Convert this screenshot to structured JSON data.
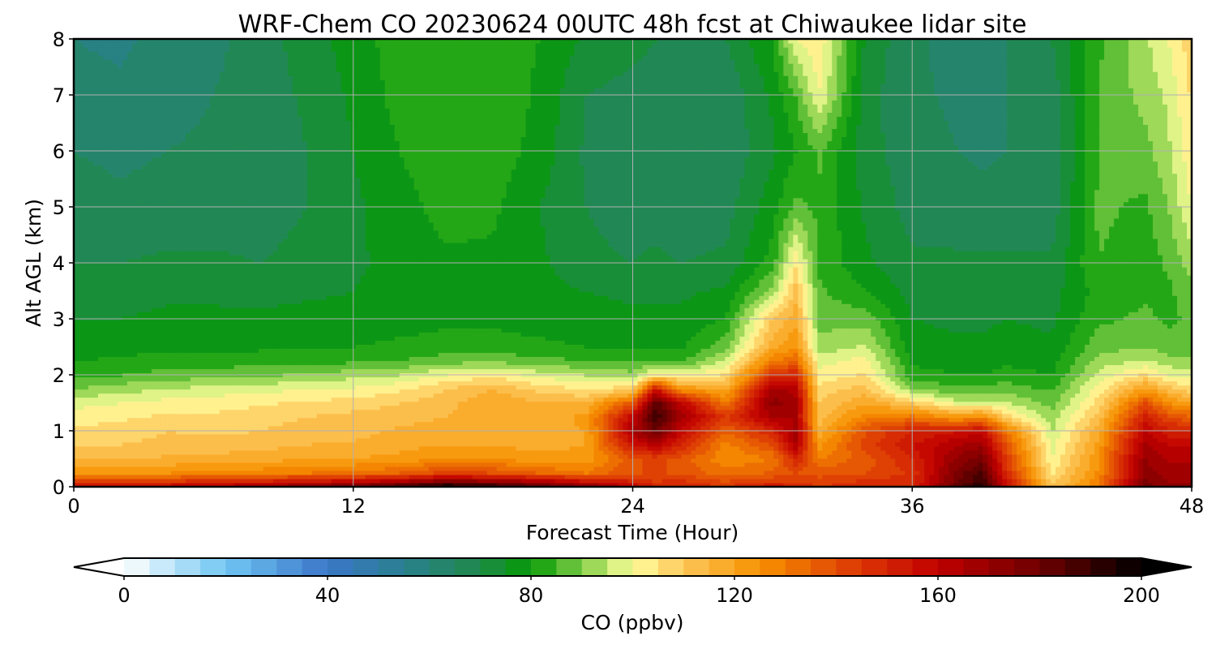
{
  "chart_data": {
    "type": "heatmap",
    "title": "WRF-Chem CO  20230624 00UTC 48h fcst at Chiwaukee lidar site",
    "xlabel": "Forecast Time (Hour)",
    "ylabel": "Alt AGL (km)",
    "xlim": [
      0,
      48
    ],
    "ylim": [
      0,
      8
    ],
    "xticks": [
      0,
      12,
      24,
      36,
      48
    ],
    "yticks": [
      0,
      1,
      2,
      3,
      4,
      5,
      6,
      7,
      8
    ],
    "grid": true,
    "x_hours": [
      0,
      2,
      4,
      6,
      8,
      10,
      12,
      14,
      16,
      18,
      20,
      22,
      24,
      25,
      26,
      28,
      30,
      31,
      32,
      34,
      36,
      38,
      39,
      40,
      42,
      44,
      46,
      47,
      48
    ],
    "y_km": [
      0,
      0.1,
      0.25,
      0.5,
      0.75,
      1.0,
      1.25,
      1.5,
      1.75,
      2.0,
      2.25,
      2.5,
      3.0,
      3.5,
      4.0,
      5.0,
      6.0,
      7.0,
      8.0
    ],
    "z_ppbv": [
      [
        160,
        145,
        125,
        115,
        110,
        106,
        103,
        98,
        90,
        83,
        80,
        77,
        75,
        73,
        70,
        67,
        65,
        62,
        60
      ],
      [
        158,
        143,
        124,
        114,
        110,
        107,
        104,
        100,
        93,
        85,
        81,
        78,
        75,
        73,
        70,
        66,
        64,
        61,
        59
      ],
      [
        160,
        145,
        125,
        116,
        112,
        110,
        106,
        102,
        95,
        87,
        82,
        79,
        76,
        74,
        71,
        67,
        65,
        63,
        62
      ],
      [
        165,
        148,
        128,
        117,
        112,
        109,
        106,
        103,
        97,
        88,
        82,
        79,
        76,
        74,
        71,
        67,
        66,
        65,
        64
      ],
      [
        168,
        150,
        128,
        118,
        113,
        110,
        108,
        104,
        98,
        89,
        83,
        79,
        76,
        73,
        70,
        67,
        66,
        67,
        67
      ],
      [
        175,
        155,
        130,
        120,
        115,
        112,
        110,
        106,
        100,
        91,
        83,
        80,
        77,
        74,
        72,
        70,
        70,
        71,
        73
      ],
      [
        180,
        158,
        132,
        120,
        116,
        113,
        112,
        107,
        101,
        93,
        84,
        80,
        77,
        75,
        74,
        74,
        75,
        76,
        77
      ],
      [
        190,
        165,
        135,
        122,
        118,
        116,
        113,
        110,
        104,
        95,
        85,
        81,
        78,
        77,
        77,
        78,
        80,
        82,
        83
      ],
      [
        200,
        175,
        142,
        126,
        120,
        118,
        115,
        113,
        110,
        100,
        88,
        82,
        79,
        78,
        79,
        82,
        84,
        85,
        84
      ],
      [
        195,
        170,
        140,
        125,
        120,
        118,
        118,
        120,
        115,
        103,
        89,
        82,
        79,
        78,
        79,
        81,
        83,
        84,
        82
      ],
      [
        185,
        165,
        135,
        122,
        118,
        117,
        116,
        115,
        108,
        98,
        87,
        81,
        78,
        77,
        76,
        75,
        78,
        79,
        80
      ],
      [
        175,
        155,
        130,
        122,
        120,
        120,
        122,
        115,
        105,
        95,
        85,
        80,
        77,
        75,
        71,
        70,
        69,
        70,
        74
      ],
      [
        160,
        150,
        140,
        138,
        155,
        165,
        160,
        138,
        108,
        92,
        84,
        79,
        76,
        74,
        70,
        68,
        67,
        68,
        72
      ],
      [
        150,
        145,
        140,
        142,
        162,
        180,
        190,
        185,
        155,
        105,
        86,
        79,
        76,
        74,
        71,
        68,
        66,
        67,
        70
      ],
      [
        150,
        146,
        140,
        138,
        150,
        160,
        168,
        162,
        125,
        100,
        84,
        79,
        76,
        74,
        70,
        67,
        65,
        66,
        70
      ],
      [
        145,
        140,
        132,
        126,
        128,
        135,
        145,
        130,
        118,
        106,
        96,
        88,
        80,
        76,
        71,
        68,
        66,
        66,
        70
      ],
      [
        155,
        145,
        136,
        130,
        140,
        150,
        165,
        172,
        168,
        148,
        130,
        118,
        110,
        92,
        82,
        78,
        74,
        76,
        80
      ],
      [
        150,
        145,
        140,
        150,
        165,
        168,
        165,
        168,
        162,
        150,
        135,
        125,
        118,
        112,
        104,
        86,
        80,
        85,
        100
      ],
      [
        145,
        142,
        138,
        130,
        123,
        117,
        112,
        110,
        107,
        102,
        98,
        92,
        88,
        86,
        84,
        84,
        86,
        100,
        104
      ],
      [
        150,
        146,
        140,
        137,
        142,
        140,
        128,
        120,
        112,
        106,
        102,
        96,
        88,
        80,
        76,
        74,
        72,
        72,
        74
      ],
      [
        150,
        148,
        146,
        150,
        155,
        150,
        132,
        110,
        90,
        82,
        79,
        77,
        75,
        73,
        71,
        68,
        67,
        66,
        66
      ],
      [
        185,
        180,
        178,
        172,
        165,
        155,
        122,
        97,
        86,
        80,
        78,
        76,
        74,
        73,
        71,
        67,
        65,
        64,
        63
      ],
      [
        195,
        190,
        186,
        178,
        168,
        158,
        128,
        98,
        86,
        80,
        78,
        76,
        74,
        73,
        71,
        67,
        64,
        64,
        63
      ],
      [
        160,
        155,
        150,
        145,
        140,
        132,
        108,
        96,
        88,
        82,
        79,
        77,
        75,
        73,
        71,
        67,
        65,
        65,
        65
      ],
      [
        112,
        108,
        104,
        100,
        98,
        95,
        92,
        88,
        84,
        80,
        78,
        76,
        74,
        73,
        71,
        67,
        66,
        67,
        70
      ],
      [
        130,
        128,
        126,
        124,
        122,
        118,
        112,
        107,
        102,
        97,
        92,
        88,
        84,
        82,
        85,
        86,
        85,
        85,
        84
      ],
      [
        178,
        176,
        172,
        170,
        166,
        160,
        152,
        140,
        122,
        106,
        96,
        90,
        86,
        84,
        82,
        84,
        88,
        92,
        94
      ],
      [
        172,
        170,
        168,
        164,
        160,
        152,
        140,
        126,
        112,
        100,
        92,
        87,
        84,
        84,
        86,
        90,
        94,
        96,
        100
      ],
      [
        172,
        170,
        168,
        164,
        160,
        150,
        136,
        120,
        106,
        97,
        91,
        87,
        86,
        88,
        93,
        100,
        104,
        106,
        108
      ]
    ],
    "colorbar": {
      "label": "CO  (ppbv)",
      "min": 0,
      "max": 200,
      "step": 5,
      "ticks": [
        0,
        40,
        80,
        120,
        160,
        200
      ],
      "extend": "both",
      "colormap_stops": [
        {
          "value": 0,
          "color": "#ffffff"
        },
        {
          "value": 20,
          "color": "#6fc6f2"
        },
        {
          "value": 40,
          "color": "#3b76c9"
        },
        {
          "value": 55,
          "color": "#2a7f8e"
        },
        {
          "value": 70,
          "color": "#1f8a4a"
        },
        {
          "value": 80,
          "color": "#059a05"
        },
        {
          "value": 93,
          "color": "#a4dc5c"
        },
        {
          "value": 100,
          "color": "#ffff9f"
        },
        {
          "value": 110,
          "color": "#fdc75a"
        },
        {
          "value": 125,
          "color": "#f79100"
        },
        {
          "value": 145,
          "color": "#db3505"
        },
        {
          "value": 160,
          "color": "#c00000"
        },
        {
          "value": 180,
          "color": "#6e0000"
        },
        {
          "value": 200,
          "color": "#000000"
        }
      ]
    }
  }
}
